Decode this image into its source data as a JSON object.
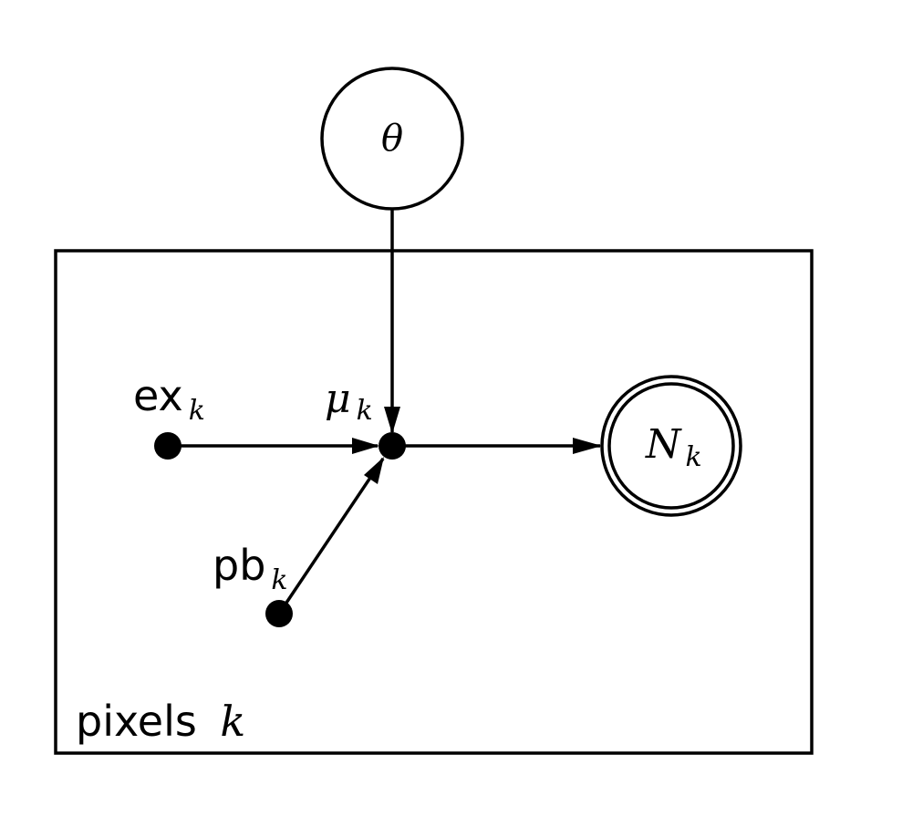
{
  "graph": {
    "colors": {
      "stroke": "#000000",
      "fill_dot": "#000000",
      "background": "#ffffff"
    },
    "plate": {
      "label_text": "pixels",
      "label_var": "k"
    },
    "nodes": {
      "theta": {
        "symbol": "θ",
        "kind": "latent-circle"
      },
      "ex": {
        "base": "ex",
        "sub": "k",
        "kind": "deterministic-dot"
      },
      "pb": {
        "base": "pb",
        "sub": "k",
        "kind": "deterministic-dot"
      },
      "mu": {
        "base": "μ",
        "sub": "k",
        "kind": "deterministic-dot"
      },
      "N": {
        "base": "N",
        "sub": "k",
        "kind": "observed-double-circle"
      }
    },
    "edges": [
      {
        "from": "theta",
        "to": "mu"
      },
      {
        "from": "ex",
        "to": "mu"
      },
      {
        "from": "pb",
        "to": "mu"
      },
      {
        "from": "mu",
        "to": "N"
      }
    ]
  }
}
